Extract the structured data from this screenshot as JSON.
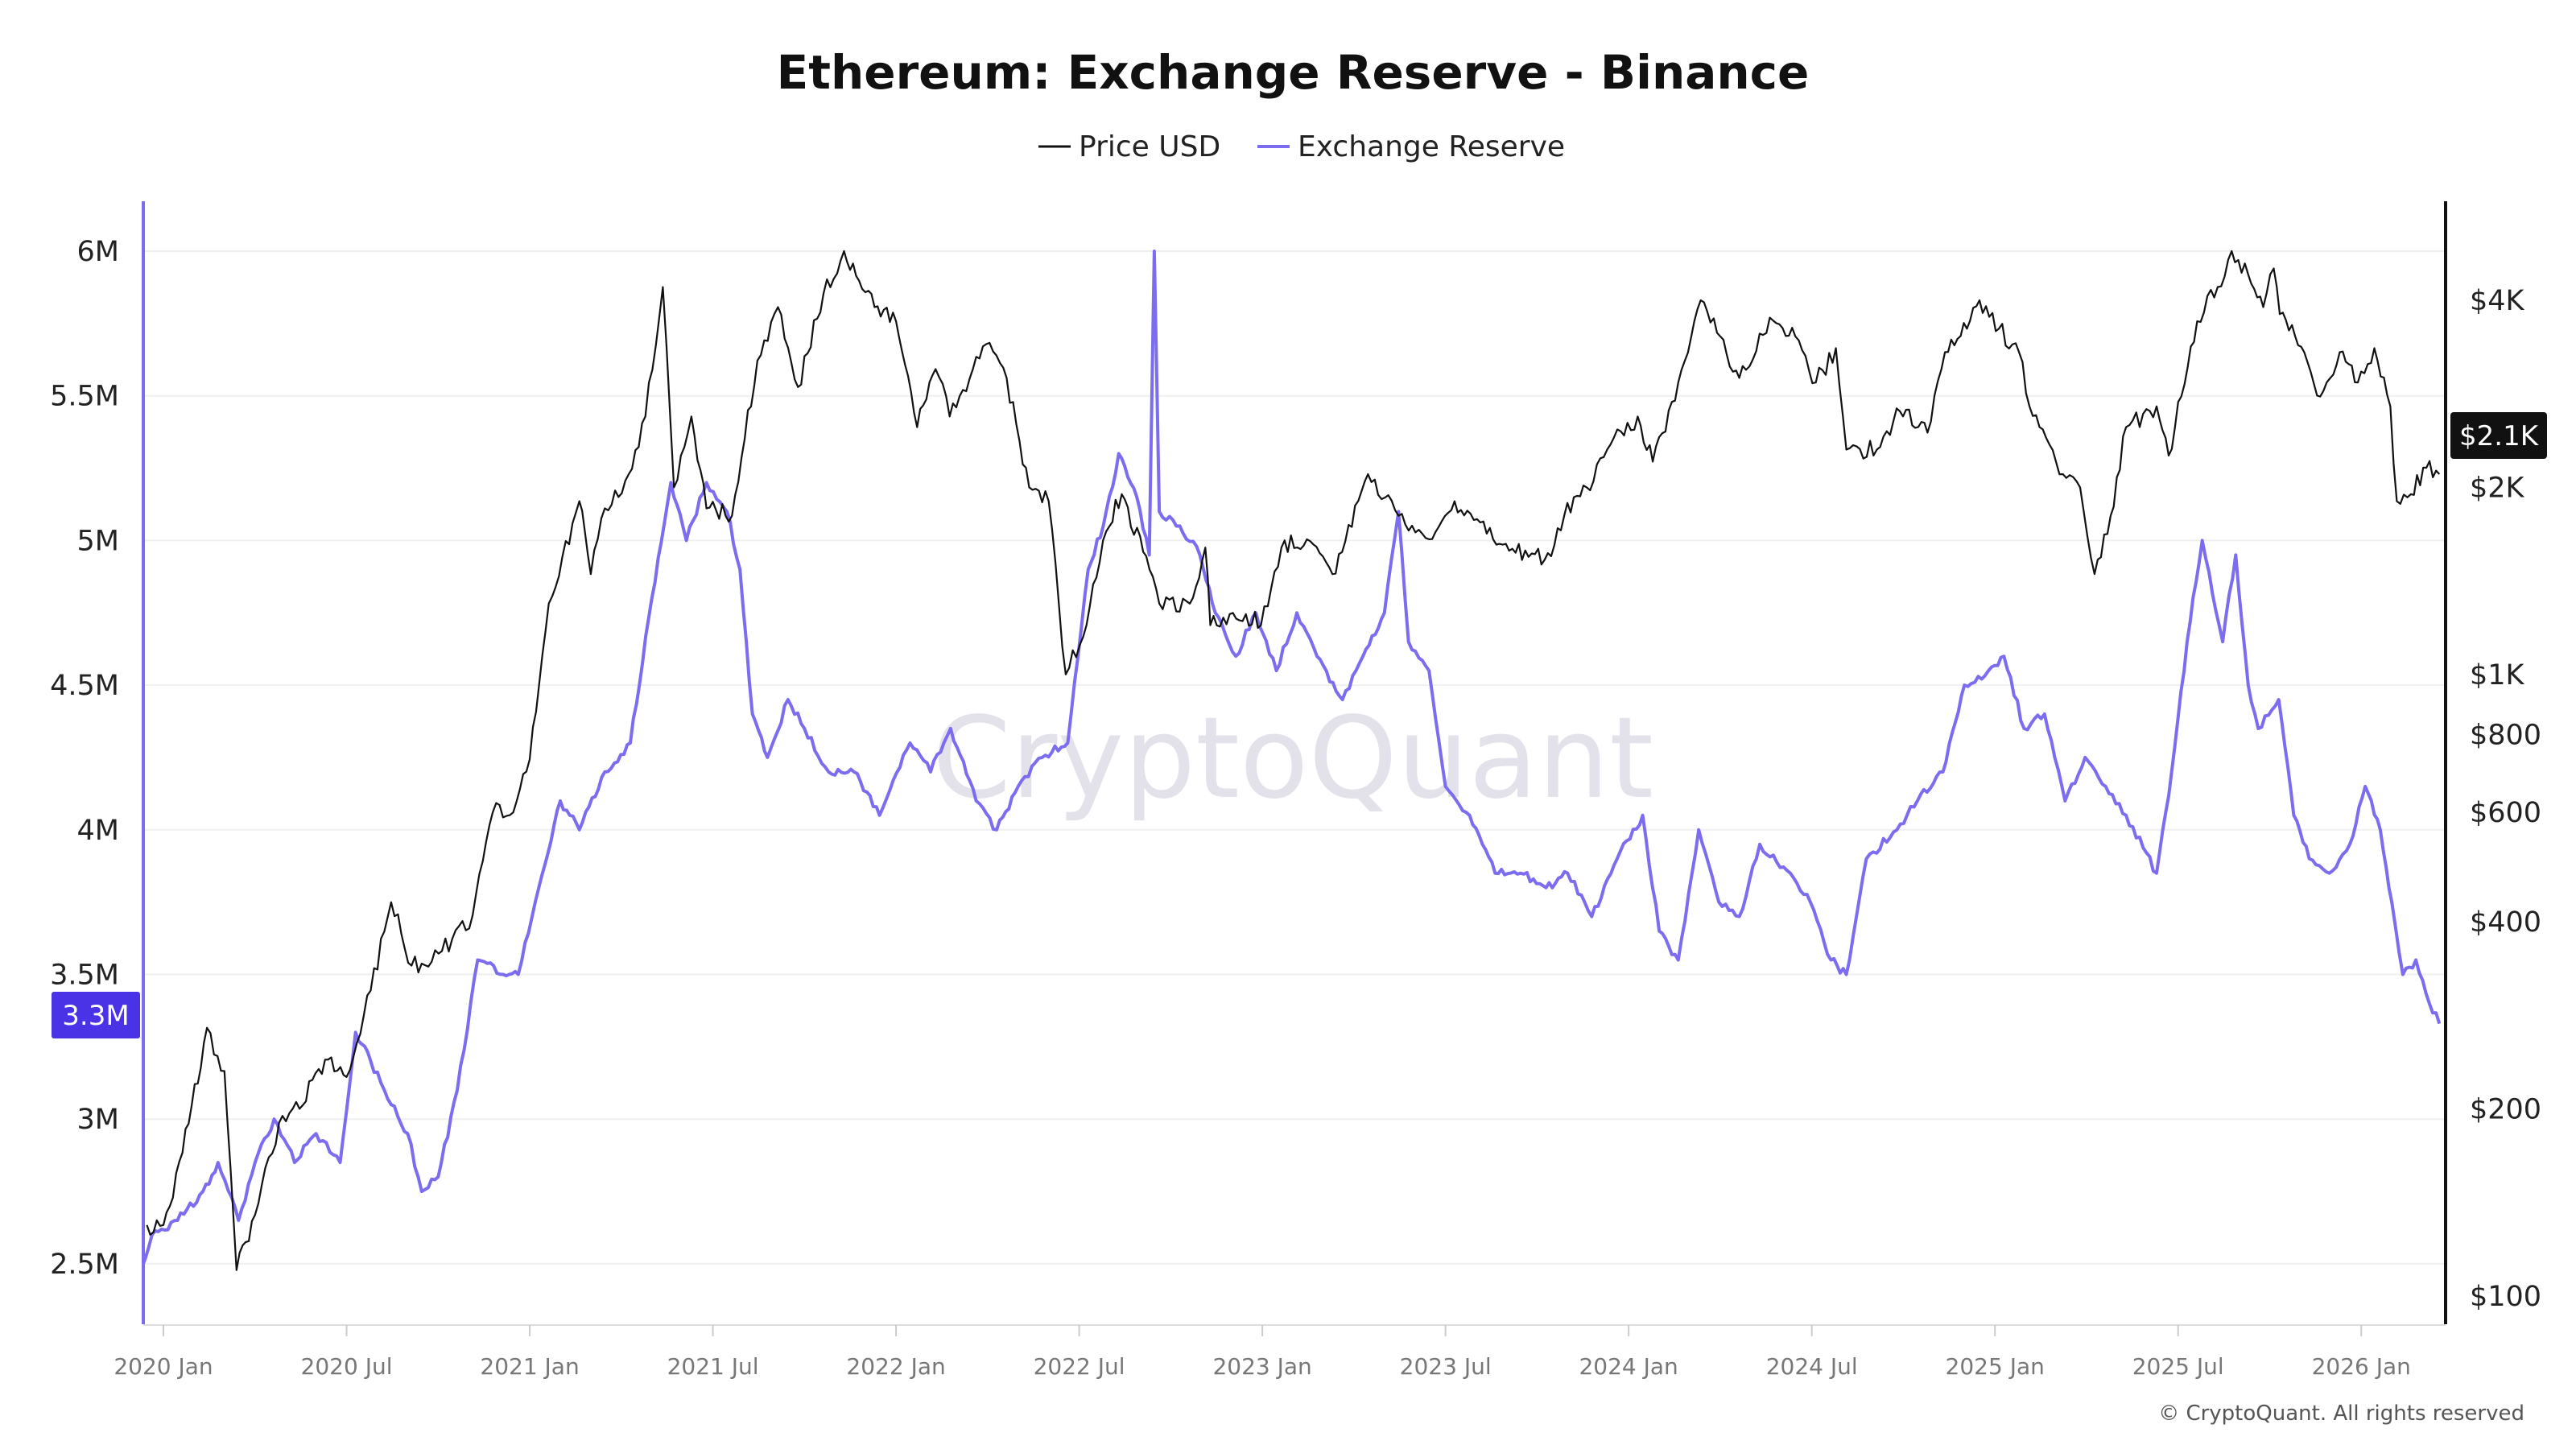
{
  "chart_data": {
    "type": "line",
    "title": "Ethereum: Exchange Reserve - Binance",
    "legend": {
      "placement": "top-center",
      "entries": [
        "Price USD",
        "Exchange Reserve"
      ]
    },
    "watermark": "CryptoQuant",
    "copyright": "© CryptoQuant. All rights reserved",
    "colors": {
      "price": "#111111",
      "reserve": "#7b6cf0",
      "reserve_badge": "#4a32e6",
      "price_badge": "#111111"
    },
    "x_axis": {
      "type": "date",
      "ticks": [
        "2020 Jan",
        "2020 Jul",
        "2021 Jan",
        "2021 Jul",
        "2022 Jan",
        "2022 Jul",
        "2023 Jan",
        "2023 Jul",
        "2024 Jan",
        "2024 Jul",
        "2025 Jan",
        "2025 Jul",
        "2026 Jan"
      ],
      "range": [
        "2019-12-10",
        "2026-03-20"
      ]
    },
    "y_left": {
      "ticks": [
        "2.5M",
        "3M",
        "3.5M",
        "4M",
        "4.5M",
        "5M",
        "5.5M",
        "6M"
      ],
      "tick_values": [
        2.5,
        3,
        3.5,
        4,
        4.5,
        5,
        5.5,
        6
      ],
      "unit": "M",
      "range": [
        2.3,
        6.2
      ],
      "grid": true
    },
    "y_right": {
      "scale": "log",
      "ticks": [
        "$100",
        "$200",
        "$400",
        "$600",
        "$800",
        "$1K",
        "$2K",
        "$4K"
      ],
      "tick_values": [
        100,
        200,
        400,
        600,
        800,
        1000,
        2000,
        4000
      ]
    },
    "last_values": {
      "reserve": "3.3M",
      "price": "$2.1K"
    },
    "series": [
      {
        "name": "Price USD",
        "axis": "right",
        "points": [
          [
            "2019-12-15",
            130
          ],
          [
            "2020-01-01",
            130
          ],
          [
            "2020-01-20",
            170
          ],
          [
            "2020-02-14",
            270
          ],
          [
            "2020-03-01",
            230
          ],
          [
            "2020-03-13",
            110
          ],
          [
            "2020-04-01",
            135
          ],
          [
            "2020-04-25",
            190
          ],
          [
            "2020-05-15",
            200
          ],
          [
            "2020-06-10",
            240
          ],
          [
            "2020-07-01",
            225
          ],
          [
            "2020-07-25",
            310
          ],
          [
            "2020-08-15",
            430
          ],
          [
            "2020-09-05",
            340
          ],
          [
            "2020-09-25",
            345
          ],
          [
            "2020-10-15",
            375
          ],
          [
            "2020-11-05",
            410
          ],
          [
            "2020-11-25",
            600
          ],
          [
            "2020-12-15",
            600
          ],
          [
            "2021-01-01",
            730
          ],
          [
            "2021-01-20",
            1300
          ],
          [
            "2021-02-20",
            1900
          ],
          [
            "2021-03-01",
            1450
          ],
          [
            "2021-03-15",
            1850
          ],
          [
            "2021-04-05",
            2050
          ],
          [
            "2021-04-25",
            2600
          ],
          [
            "2021-05-12",
            4200
          ],
          [
            "2021-05-23",
            2000
          ],
          [
            "2021-06-10",
            2600
          ],
          [
            "2021-06-25",
            1850
          ],
          [
            "2021-07-20",
            1800
          ],
          [
            "2021-08-15",
            3200
          ],
          [
            "2021-09-05",
            3900
          ],
          [
            "2021-09-25",
            2900
          ],
          [
            "2021-10-20",
            4100
          ],
          [
            "2021-11-10",
            4800
          ],
          [
            "2021-11-25",
            4300
          ],
          [
            "2021-12-10",
            3900
          ],
          [
            "2022-01-01",
            3700
          ],
          [
            "2022-01-22",
            2500
          ],
          [
            "2022-02-10",
            3100
          ],
          [
            "2022-02-24",
            2600
          ],
          [
            "2022-03-30",
            3400
          ],
          [
            "2022-04-20",
            3000
          ],
          [
            "2022-05-12",
            2000
          ],
          [
            "2022-06-01",
            1900
          ],
          [
            "2022-06-18",
            1000
          ],
          [
            "2022-07-05",
            1150
          ],
          [
            "2022-07-28",
            1700
          ],
          [
            "2022-08-13",
            1950
          ],
          [
            "2022-09-07",
            1550
          ],
          [
            "2022-09-20",
            1300
          ],
          [
            "2022-10-20",
            1300
          ],
          [
            "2022-11-05",
            1600
          ],
          [
            "2022-11-10",
            1200
          ],
          [
            "2022-12-15",
            1250
          ],
          [
            "2022-12-30",
            1200
          ],
          [
            "2023-01-20",
            1600
          ],
          [
            "2023-02-15",
            1650
          ],
          [
            "2023-03-10",
            1450
          ],
          [
            "2023-04-15",
            2100
          ],
          [
            "2023-05-15",
            1800
          ],
          [
            "2023-06-15",
            1650
          ],
          [
            "2023-07-10",
            1900
          ],
          [
            "2023-08-18",
            1650
          ],
          [
            "2023-09-10",
            1570
          ],
          [
            "2023-10-15",
            1550
          ],
          [
            "2023-10-28",
            1800
          ],
          [
            "2023-11-20",
            2000
          ],
          [
            "2023-12-10",
            2300
          ],
          [
            "2024-01-10",
            2600
          ],
          [
            "2024-01-25",
            2200
          ],
          [
            "2024-02-20",
            2950
          ],
          [
            "2024-03-12",
            4000
          ],
          [
            "2024-04-01",
            3500
          ],
          [
            "2024-04-20",
            3000
          ],
          [
            "2024-05-20",
            3750
          ],
          [
            "2024-06-15",
            3500
          ],
          [
            "2024-07-05",
            2950
          ],
          [
            "2024-07-25",
            3350
          ],
          [
            "2024-08-05",
            2300
          ],
          [
            "2024-09-05",
            2300
          ],
          [
            "2024-09-28",
            2650
          ],
          [
            "2024-10-25",
            2450
          ],
          [
            "2024-11-12",
            3300
          ],
          [
            "2024-12-16",
            4000
          ],
          [
            "2025-01-05",
            3600
          ],
          [
            "2025-01-25",
            3300
          ],
          [
            "2025-02-05",
            2700
          ],
          [
            "2025-03-01",
            2200
          ],
          [
            "2025-03-25",
            2000
          ],
          [
            "2025-04-09",
            1450
          ],
          [
            "2025-04-25",
            1800
          ],
          [
            "2025-05-10",
            2500
          ],
          [
            "2025-06-10",
            2700
          ],
          [
            "2025-06-22",
            2250
          ],
          [
            "2025-07-20",
            3700
          ],
          [
            "2025-08-10",
            4200
          ],
          [
            "2025-08-24",
            4800
          ],
          [
            "2025-09-10",
            4400
          ],
          [
            "2025-09-25",
            3900
          ],
          [
            "2025-10-05",
            4500
          ],
          [
            "2025-10-11",
            3800
          ],
          [
            "2025-11-05",
            3300
          ],
          [
            "2025-11-21",
            2800
          ],
          [
            "2025-12-10",
            3300
          ],
          [
            "2025-12-28",
            2950
          ],
          [
            "2026-01-14",
            3350
          ],
          [
            "2026-01-30",
            2700
          ],
          [
            "2026-02-06",
            1900
          ],
          [
            "2026-02-20",
            1950
          ],
          [
            "2026-03-05",
            2150
          ],
          [
            "2026-03-18",
            2100
          ]
        ]
      },
      {
        "name": "Exchange Reserve",
        "axis": "left",
        "points": [
          [
            "2019-12-10",
            2.5
          ],
          [
            "2019-12-20",
            2.6
          ],
          [
            "2020-01-15",
            2.65
          ],
          [
            "2020-02-10",
            2.75
          ],
          [
            "2020-02-25",
            2.85
          ],
          [
            "2020-03-15",
            2.65
          ],
          [
            "2020-04-01",
            2.85
          ],
          [
            "2020-04-20",
            3.0
          ],
          [
            "2020-05-10",
            2.85
          ],
          [
            "2020-06-01",
            2.95
          ],
          [
            "2020-06-25",
            2.85
          ],
          [
            "2020-07-10",
            3.3
          ],
          [
            "2020-07-25",
            3.2
          ],
          [
            "2020-08-15",
            3.05
          ],
          [
            "2020-09-01",
            2.95
          ],
          [
            "2020-09-15",
            2.75
          ],
          [
            "2020-10-01",
            2.8
          ],
          [
            "2020-10-20",
            3.1
          ],
          [
            "2020-11-10",
            3.55
          ],
          [
            "2020-12-05",
            3.5
          ],
          [
            "2020-12-20",
            3.5
          ],
          [
            "2021-01-10",
            3.8
          ],
          [
            "2021-02-01",
            4.1
          ],
          [
            "2021-02-20",
            4.0
          ],
          [
            "2021-03-15",
            4.2
          ],
          [
            "2021-04-10",
            4.3
          ],
          [
            "2021-05-01",
            4.8
          ],
          [
            "2021-05-20",
            5.2
          ],
          [
            "2021-06-05",
            5.0
          ],
          [
            "2021-06-25",
            5.2
          ],
          [
            "2021-07-15",
            5.1
          ],
          [
            "2021-07-28",
            4.9
          ],
          [
            "2021-08-10",
            4.4
          ],
          [
            "2021-08-25",
            4.25
          ],
          [
            "2021-09-15",
            4.45
          ],
          [
            "2021-10-01",
            4.35
          ],
          [
            "2021-10-25",
            4.2
          ],
          [
            "2021-11-20",
            4.2
          ],
          [
            "2021-12-15",
            4.05
          ],
          [
            "2022-01-15",
            4.3
          ],
          [
            "2022-02-05",
            4.2
          ],
          [
            "2022-02-25",
            4.35
          ],
          [
            "2022-03-20",
            4.1
          ],
          [
            "2022-04-10",
            4.0
          ],
          [
            "2022-05-01",
            4.15
          ],
          [
            "2022-05-25",
            4.25
          ],
          [
            "2022-06-20",
            4.3
          ],
          [
            "2022-07-10",
            4.9
          ],
          [
            "2022-07-25",
            5.05
          ],
          [
            "2022-08-10",
            5.3
          ],
          [
            "2022-08-28",
            5.15
          ],
          [
            "2022-09-10",
            4.95
          ],
          [
            "2022-09-15",
            6.0
          ],
          [
            "2022-09-20",
            5.1
          ],
          [
            "2022-10-10",
            5.05
          ],
          [
            "2022-10-30",
            4.95
          ],
          [
            "2022-11-15",
            4.75
          ],
          [
            "2022-12-05",
            4.6
          ],
          [
            "2022-12-25",
            4.75
          ],
          [
            "2023-01-15",
            4.55
          ],
          [
            "2023-02-05",
            4.75
          ],
          [
            "2023-02-25",
            4.6
          ],
          [
            "2023-03-20",
            4.45
          ],
          [
            "2023-04-10",
            4.6
          ],
          [
            "2023-05-01",
            4.75
          ],
          [
            "2023-05-15",
            5.1
          ],
          [
            "2023-05-25",
            4.65
          ],
          [
            "2023-06-15",
            4.55
          ],
          [
            "2023-07-01",
            4.15
          ],
          [
            "2023-07-25",
            4.05
          ],
          [
            "2023-08-20",
            3.85
          ],
          [
            "2023-09-15",
            3.85
          ],
          [
            "2023-10-10",
            3.8
          ],
          [
            "2023-11-01",
            3.85
          ],
          [
            "2023-11-25",
            3.7
          ],
          [
            "2023-12-20",
            3.9
          ],
          [
            "2024-01-15",
            4.05
          ],
          [
            "2024-02-01",
            3.65
          ],
          [
            "2024-02-20",
            3.55
          ],
          [
            "2024-03-10",
            4.0
          ],
          [
            "2024-03-30",
            3.75
          ],
          [
            "2024-04-20",
            3.7
          ],
          [
            "2024-05-10",
            3.95
          ],
          [
            "2024-06-10",
            3.85
          ],
          [
            "2024-06-30",
            3.75
          ],
          [
            "2024-07-20",
            3.55
          ],
          [
            "2024-08-05",
            3.5
          ],
          [
            "2024-08-25",
            3.9
          ],
          [
            "2024-09-25",
            4.0
          ],
          [
            "2024-10-15",
            4.1
          ],
          [
            "2024-11-10",
            4.2
          ],
          [
            "2024-12-01",
            4.5
          ],
          [
            "2024-12-25",
            4.55
          ],
          [
            "2025-01-10",
            4.6
          ],
          [
            "2025-01-30",
            4.35
          ],
          [
            "2025-02-20",
            4.4
          ],
          [
            "2025-03-10",
            4.1
          ],
          [
            "2025-03-30",
            4.25
          ],
          [
            "2025-04-20",
            4.15
          ],
          [
            "2025-05-10",
            4.05
          ],
          [
            "2025-06-10",
            3.85
          ],
          [
            "2025-06-25",
            4.2
          ],
          [
            "2025-07-10",
            4.65
          ],
          [
            "2025-07-25",
            5.0
          ],
          [
            "2025-08-15",
            4.65
          ],
          [
            "2025-08-28",
            4.95
          ],
          [
            "2025-09-10",
            4.5
          ],
          [
            "2025-09-20",
            4.35
          ],
          [
            "2025-10-10",
            4.45
          ],
          [
            "2025-10-25",
            4.05
          ],
          [
            "2025-11-10",
            3.9
          ],
          [
            "2025-11-30",
            3.85
          ],
          [
            "2025-12-20",
            3.95
          ],
          [
            "2026-01-05",
            4.15
          ],
          [
            "2026-01-20",
            4.0
          ],
          [
            "2026-02-01",
            3.75
          ],
          [
            "2026-02-12",
            3.5
          ],
          [
            "2026-02-25",
            3.55
          ],
          [
            "2026-03-08",
            3.4
          ],
          [
            "2026-03-18",
            3.33
          ]
        ]
      }
    ]
  }
}
